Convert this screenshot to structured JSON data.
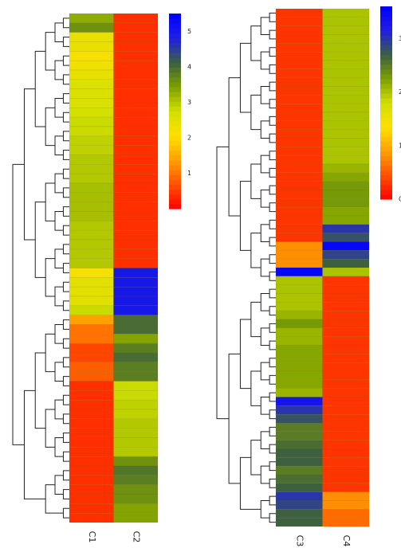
{
  "chart_data": [
    {
      "type": "heatmap",
      "columns": [
        "C1",
        "C2"
      ],
      "colorbar": {
        "ticks": [
          "1",
          "2",
          "3",
          "4",
          "5"
        ],
        "range": [
          0,
          5.5
        ]
      },
      "palette": [
        "#ff0000",
        "#ff5000",
        "#ffa000",
        "#ffe000",
        "#d0e000",
        "#7da000",
        "#3c6040",
        "#2020e0",
        "#0000ff"
      ],
      "values": [
        [
          3.3,
          0.4
        ],
        [
          3.6,
          0.4
        ],
        [
          2.4,
          0.4
        ],
        [
          2.4,
          0.4
        ],
        [
          2.2,
          0.4
        ],
        [
          2.3,
          0.4
        ],
        [
          2.4,
          0.4
        ],
        [
          2.6,
          0.4
        ],
        [
          2.6,
          0.4
        ],
        [
          2.6,
          0.4
        ],
        [
          2.7,
          0.4
        ],
        [
          2.8,
          0.4
        ],
        [
          2.8,
          0.4
        ],
        [
          2.9,
          0.4
        ],
        [
          2.9,
          0.4
        ],
        [
          3.0,
          0.4
        ],
        [
          3.0,
          0.4
        ],
        [
          3.0,
          0.4
        ],
        [
          3.1,
          0.4
        ],
        [
          3.1,
          0.4
        ],
        [
          3.1,
          0.4
        ],
        [
          3.1,
          0.4
        ],
        [
          3.0,
          0.4
        ],
        [
          3.0,
          0.4
        ],
        [
          3.0,
          0.4
        ],
        [
          3.0,
          0.4
        ],
        [
          3.0,
          0.4
        ],
        [
          2.2,
          5.0
        ],
        [
          2.5,
          5.0
        ],
        [
          2.5,
          5.0
        ],
        [
          2.5,
          5.0
        ],
        [
          2.8,
          5.0
        ],
        [
          1.4,
          4.0
        ],
        [
          1.0,
          4.0
        ],
        [
          1.0,
          3.4
        ],
        [
          0.6,
          3.8
        ],
        [
          0.6,
          4.0
        ],
        [
          0.8,
          3.8
        ],
        [
          0.8,
          3.8
        ],
        [
          0.4,
          2.8
        ],
        [
          0.4,
          2.8
        ],
        [
          0.4,
          2.9
        ],
        [
          0.4,
          2.9
        ],
        [
          0.4,
          3.0
        ],
        [
          0.4,
          3.0
        ],
        [
          0.4,
          3.0
        ],
        [
          0.4,
          3.0
        ],
        [
          0.4,
          3.6
        ],
        [
          0.4,
          3.9
        ],
        [
          0.4,
          3.8
        ],
        [
          0.4,
          3.6
        ],
        [
          0.4,
          3.6
        ],
        [
          0.4,
          3.4
        ],
        [
          0.4,
          3.4
        ]
      ]
    },
    {
      "type": "heatmap",
      "columns": [
        "C3",
        "C4"
      ],
      "colorbar": {
        "ticks": [
          "0",
          "1",
          "2",
          "3"
        ],
        "range": [
          0,
          3.6
        ]
      },
      "palette": [
        "#ff0000",
        "#ff5000",
        "#ffa000",
        "#ffe000",
        "#d0e000",
        "#7da000",
        "#3c6040",
        "#2020e0",
        "#0000ff"
      ],
      "values": [
        [
          0.3,
          2.0
        ],
        [
          0.3,
          2.0
        ],
        [
          0.3,
          2.0
        ],
        [
          0.3,
          2.0
        ],
        [
          0.3,
          2.0
        ],
        [
          0.3,
          2.0
        ],
        [
          0.3,
          2.0
        ],
        [
          0.3,
          2.0
        ],
        [
          0.3,
          2.0
        ],
        [
          0.3,
          2.0
        ],
        [
          0.3,
          2.0
        ],
        [
          0.3,
          2.0
        ],
        [
          0.3,
          2.0
        ],
        [
          0.3,
          2.0
        ],
        [
          0.3,
          2.0
        ],
        [
          0.3,
          2.0
        ],
        [
          0.3,
          2.0
        ],
        [
          0.3,
          2.0
        ],
        [
          0.3,
          2.1
        ],
        [
          0.3,
          2.2
        ],
        [
          0.3,
          2.3
        ],
        [
          0.3,
          2.3
        ],
        [
          0.3,
          2.3
        ],
        [
          0.3,
          2.2
        ],
        [
          0.3,
          2.2
        ],
        [
          0.3,
          3.0
        ],
        [
          0.3,
          2.8
        ],
        [
          0.8,
          3.5
        ],
        [
          0.8,
          2.9
        ],
        [
          0.8,
          2.7
        ],
        [
          3.5,
          2.0
        ],
        [
          2.0,
          0.3
        ],
        [
          2.0,
          0.3
        ],
        [
          2.0,
          0.3
        ],
        [
          2.0,
          0.3
        ],
        [
          2.1,
          0.3
        ],
        [
          2.3,
          0.3
        ],
        [
          2.1,
          0.3
        ],
        [
          2.1,
          0.3
        ],
        [
          2.2,
          0.3
        ],
        [
          2.2,
          0.3
        ],
        [
          2.2,
          0.3
        ],
        [
          2.2,
          0.3
        ],
        [
          2.2,
          0.3
        ],
        [
          2.1,
          0.3
        ],
        [
          3.3,
          0.3
        ],
        [
          3.0,
          0.3
        ],
        [
          2.8,
          0.3
        ],
        [
          2.5,
          0.3
        ],
        [
          2.5,
          0.3
        ],
        [
          2.6,
          0.3
        ],
        [
          2.7,
          0.3
        ],
        [
          2.7,
          0.3
        ],
        [
          2.5,
          0.3
        ],
        [
          2.6,
          0.3
        ],
        [
          2.7,
          0.3
        ],
        [
          3.0,
          0.8
        ],
        [
          2.9,
          0.8
        ],
        [
          2.7,
          0.6
        ],
        [
          2.7,
          0.6
        ]
      ]
    }
  ]
}
